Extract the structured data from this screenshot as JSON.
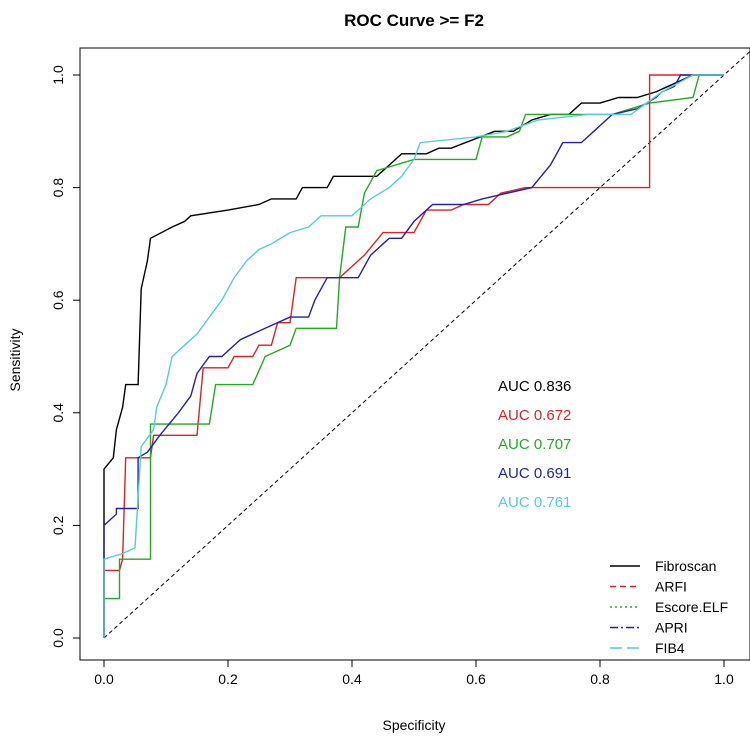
{
  "chart_data": {
    "type": "line",
    "title": "ROC Curve >= F2",
    "xlabel": "Specificity",
    "ylabel": "Sensitivity",
    "xlim": [
      0,
      1
    ],
    "ylim": [
      0,
      1
    ],
    "x_ticks": [
      "0.0",
      "0.2",
      "0.4",
      "0.6",
      "0.8",
      "1.0"
    ],
    "y_ticks": [
      "0.0",
      "0.2",
      "0.4",
      "0.6",
      "0.8",
      "1.0"
    ],
    "series": [
      {
        "name": "Fibroscan",
        "color": "#000000",
        "dash": "solid",
        "auc_label": "AUC 0.836",
        "points": [
          [
            0,
            0
          ],
          [
            0,
            0.3
          ],
          [
            0.015,
            0.32
          ],
          [
            0.02,
            0.37
          ],
          [
            0.03,
            0.41
          ],
          [
            0.035,
            0.45
          ],
          [
            0.055,
            0.45
          ],
          [
            0.06,
            0.62
          ],
          [
            0.07,
            0.67
          ],
          [
            0.075,
            0.71
          ],
          [
            0.11,
            0.73
          ],
          [
            0.13,
            0.74
          ],
          [
            0.14,
            0.75
          ],
          [
            0.2,
            0.76
          ],
          [
            0.25,
            0.77
          ],
          [
            0.27,
            0.78
          ],
          [
            0.31,
            0.78
          ],
          [
            0.32,
            0.8
          ],
          [
            0.36,
            0.8
          ],
          [
            0.37,
            0.82
          ],
          [
            0.44,
            0.82
          ],
          [
            0.46,
            0.84
          ],
          [
            0.48,
            0.86
          ],
          [
            0.52,
            0.86
          ],
          [
            0.54,
            0.87
          ],
          [
            0.56,
            0.87
          ],
          [
            0.63,
            0.9
          ],
          [
            0.66,
            0.9
          ],
          [
            0.69,
            0.92
          ],
          [
            0.72,
            0.93
          ],
          [
            0.75,
            0.93
          ],
          [
            0.77,
            0.95
          ],
          [
            0.8,
            0.95
          ],
          [
            0.83,
            0.96
          ],
          [
            0.86,
            0.96
          ],
          [
            0.89,
            0.97
          ],
          [
            0.91,
            0.98
          ],
          [
            0.93,
            0.99
          ],
          [
            0.95,
            1.0
          ],
          [
            1,
            1
          ]
        ]
      },
      {
        "name": "ARFI",
        "color": "#dd2222",
        "dash": "dashed",
        "auc_label": "AUC 0.672",
        "points": [
          [
            0,
            0
          ],
          [
            0,
            0.12
          ],
          [
            0.025,
            0.12
          ],
          [
            0.03,
            0.14
          ],
          [
            0.035,
            0.32
          ],
          [
            0.075,
            0.32
          ],
          [
            0.08,
            0.36
          ],
          [
            0.15,
            0.36
          ],
          [
            0.16,
            0.48
          ],
          [
            0.2,
            0.48
          ],
          [
            0.21,
            0.5
          ],
          [
            0.24,
            0.5
          ],
          [
            0.25,
            0.52
          ],
          [
            0.27,
            0.52
          ],
          [
            0.28,
            0.56
          ],
          [
            0.3,
            0.56
          ],
          [
            0.31,
            0.64
          ],
          [
            0.38,
            0.64
          ],
          [
            0.42,
            0.68
          ],
          [
            0.45,
            0.72
          ],
          [
            0.5,
            0.72
          ],
          [
            0.52,
            0.76
          ],
          [
            0.56,
            0.76
          ],
          [
            0.58,
            0.77
          ],
          [
            0.62,
            0.77
          ],
          [
            0.64,
            0.79
          ],
          [
            0.68,
            0.8
          ],
          [
            0.72,
            0.8
          ],
          [
            0.85,
            0.8
          ],
          [
            0.88,
            0.8
          ],
          [
            0.88,
            1.0
          ],
          [
            1,
            1
          ]
        ]
      },
      {
        "name": "Escore.ELF",
        "color": "#22aa22",
        "dash": "dotted",
        "auc_label": "AUC 0.707",
        "points": [
          [
            0,
            0
          ],
          [
            0,
            0.07
          ],
          [
            0.025,
            0.07
          ],
          [
            0.025,
            0.14
          ],
          [
            0.075,
            0.14
          ],
          [
            0.075,
            0.38
          ],
          [
            0.17,
            0.38
          ],
          [
            0.18,
            0.45
          ],
          [
            0.24,
            0.45
          ],
          [
            0.26,
            0.5
          ],
          [
            0.3,
            0.52
          ],
          [
            0.31,
            0.55
          ],
          [
            0.375,
            0.55
          ],
          [
            0.38,
            0.64
          ],
          [
            0.39,
            0.73
          ],
          [
            0.41,
            0.73
          ],
          [
            0.42,
            0.79
          ],
          [
            0.44,
            0.83
          ],
          [
            0.47,
            0.84
          ],
          [
            0.5,
            0.85
          ],
          [
            0.6,
            0.85
          ],
          [
            0.61,
            0.89
          ],
          [
            0.65,
            0.89
          ],
          [
            0.67,
            0.9
          ],
          [
            0.68,
            0.93
          ],
          [
            0.75,
            0.93
          ],
          [
            0.82,
            0.93
          ],
          [
            0.88,
            0.95
          ],
          [
            0.95,
            0.96
          ],
          [
            0.96,
            1.0
          ],
          [
            1,
            1
          ]
        ]
      },
      {
        "name": "APRI",
        "color": "#2222aa",
        "dash": "dashdot",
        "auc_label": "AUC 0.691",
        "points": [
          [
            0,
            0
          ],
          [
            0,
            0.2
          ],
          [
            0.02,
            0.22
          ],
          [
            0.02,
            0.23
          ],
          [
            0.055,
            0.23
          ],
          [
            0.055,
            0.32
          ],
          [
            0.07,
            0.33
          ],
          [
            0.09,
            0.36
          ],
          [
            0.12,
            0.4
          ],
          [
            0.14,
            0.43
          ],
          [
            0.15,
            0.47
          ],
          [
            0.17,
            0.5
          ],
          [
            0.19,
            0.5
          ],
          [
            0.22,
            0.53
          ],
          [
            0.26,
            0.55
          ],
          [
            0.3,
            0.57
          ],
          [
            0.33,
            0.57
          ],
          [
            0.34,
            0.6
          ],
          [
            0.36,
            0.64
          ],
          [
            0.41,
            0.64
          ],
          [
            0.43,
            0.68
          ],
          [
            0.46,
            0.71
          ],
          [
            0.48,
            0.71
          ],
          [
            0.5,
            0.74
          ],
          [
            0.53,
            0.77
          ],
          [
            0.58,
            0.77
          ],
          [
            0.61,
            0.78
          ],
          [
            0.65,
            0.79
          ],
          [
            0.69,
            0.8
          ],
          [
            0.72,
            0.84
          ],
          [
            0.74,
            0.88
          ],
          [
            0.77,
            0.88
          ],
          [
            0.79,
            0.9
          ],
          [
            0.82,
            0.93
          ],
          [
            0.86,
            0.94
          ],
          [
            0.89,
            0.96
          ],
          [
            0.9,
            0.97
          ],
          [
            0.92,
            0.98
          ],
          [
            0.93,
            1.0
          ],
          [
            1,
            1
          ]
        ]
      },
      {
        "name": "FIB4",
        "color": "#55cce0",
        "dash": "longdash",
        "auc_label": "AUC 0.761",
        "points": [
          [
            0,
            0
          ],
          [
            0,
            0.14
          ],
          [
            0.03,
            0.15
          ],
          [
            0.05,
            0.16
          ],
          [
            0.06,
            0.34
          ],
          [
            0.08,
            0.37
          ],
          [
            0.085,
            0.41
          ],
          [
            0.1,
            0.45
          ],
          [
            0.11,
            0.5
          ],
          [
            0.13,
            0.52
          ],
          [
            0.15,
            0.54
          ],
          [
            0.17,
            0.57
          ],
          [
            0.19,
            0.6
          ],
          [
            0.21,
            0.64
          ],
          [
            0.23,
            0.67
          ],
          [
            0.25,
            0.69
          ],
          [
            0.27,
            0.7
          ],
          [
            0.3,
            0.72
          ],
          [
            0.33,
            0.73
          ],
          [
            0.35,
            0.75
          ],
          [
            0.38,
            0.75
          ],
          [
            0.4,
            0.75
          ],
          [
            0.43,
            0.78
          ],
          [
            0.46,
            0.8
          ],
          [
            0.48,
            0.82
          ],
          [
            0.5,
            0.85
          ],
          [
            0.51,
            0.88
          ],
          [
            0.6,
            0.89
          ],
          [
            0.65,
            0.9
          ],
          [
            0.7,
            0.92
          ],
          [
            0.78,
            0.93
          ],
          [
            0.85,
            0.93
          ],
          [
            0.9,
            0.97
          ],
          [
            0.95,
            1.0
          ],
          [
            1,
            1
          ]
        ]
      }
    ]
  }
}
